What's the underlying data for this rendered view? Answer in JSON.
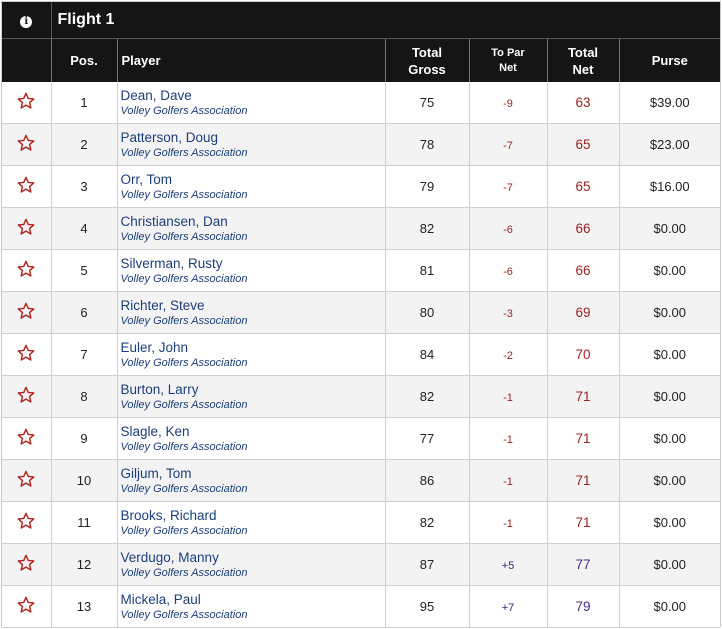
{
  "flight": {
    "title": "Flight 1",
    "info_icon": "info-icon"
  },
  "columns": {
    "pos": "Pos.",
    "player": "Player",
    "total_gross_line1": "Total",
    "total_gross_line2": "Gross",
    "to_par_line1": "To Par",
    "to_par_line2": "Net",
    "total_net_line1": "Total",
    "total_net_line2": "Net",
    "purse": "Purse"
  },
  "colors": {
    "header_bg": "#151515",
    "under_par": "#9a1f1f",
    "over_par": "#4a2a8a",
    "star": "#b22222"
  },
  "rows": [
    {
      "pos": "1",
      "name": "Dean, Dave",
      "club": "Volley Golfers Association",
      "gross": "75",
      "to_par": "-9",
      "net": "63",
      "purse": "$39.00"
    },
    {
      "pos": "2",
      "name": "Patterson, Doug",
      "club": "Volley Golfers Association",
      "gross": "78",
      "to_par": "-7",
      "net": "65",
      "purse": "$23.00"
    },
    {
      "pos": "3",
      "name": "Orr, Tom",
      "club": "Volley Golfers Association",
      "gross": "79",
      "to_par": "-7",
      "net": "65",
      "purse": "$16.00"
    },
    {
      "pos": "4",
      "name": "Christiansen, Dan",
      "club": "Volley Golfers Association",
      "gross": "82",
      "to_par": "-6",
      "net": "66",
      "purse": "$0.00"
    },
    {
      "pos": "5",
      "name": "Silverman, Rusty",
      "club": "Volley Golfers Association",
      "gross": "81",
      "to_par": "-6",
      "net": "66",
      "purse": "$0.00"
    },
    {
      "pos": "6",
      "name": "Richter, Steve",
      "club": "Volley Golfers Association",
      "gross": "80",
      "to_par": "-3",
      "net": "69",
      "purse": "$0.00"
    },
    {
      "pos": "7",
      "name": "Euler, John",
      "club": "Volley Golfers Association",
      "gross": "84",
      "to_par": "-2",
      "net": "70",
      "purse": "$0.00"
    },
    {
      "pos": "8",
      "name": "Burton, Larry",
      "club": "Volley Golfers Association",
      "gross": "82",
      "to_par": "-1",
      "net": "71",
      "purse": "$0.00"
    },
    {
      "pos": "9",
      "name": "Slagle, Ken",
      "club": "Volley Golfers Association",
      "gross": "77",
      "to_par": "-1",
      "net": "71",
      "purse": "$0.00"
    },
    {
      "pos": "10",
      "name": "Giljum, Tom",
      "club": "Volley Golfers Association",
      "gross": "86",
      "to_par": "-1",
      "net": "71",
      "purse": "$0.00"
    },
    {
      "pos": "11",
      "name": "Brooks, Richard",
      "club": "Volley Golfers Association",
      "gross": "82",
      "to_par": "-1",
      "net": "71",
      "purse": "$0.00"
    },
    {
      "pos": "12",
      "name": "Verdugo, Manny",
      "club": "Volley Golfers Association",
      "gross": "87",
      "to_par": "+5",
      "net": "77",
      "purse": "$0.00"
    },
    {
      "pos": "13",
      "name": "Mickela, Paul",
      "club": "Volley Golfers Association",
      "gross": "95",
      "to_par": "+7",
      "net": "79",
      "purse": "$0.00"
    }
  ]
}
